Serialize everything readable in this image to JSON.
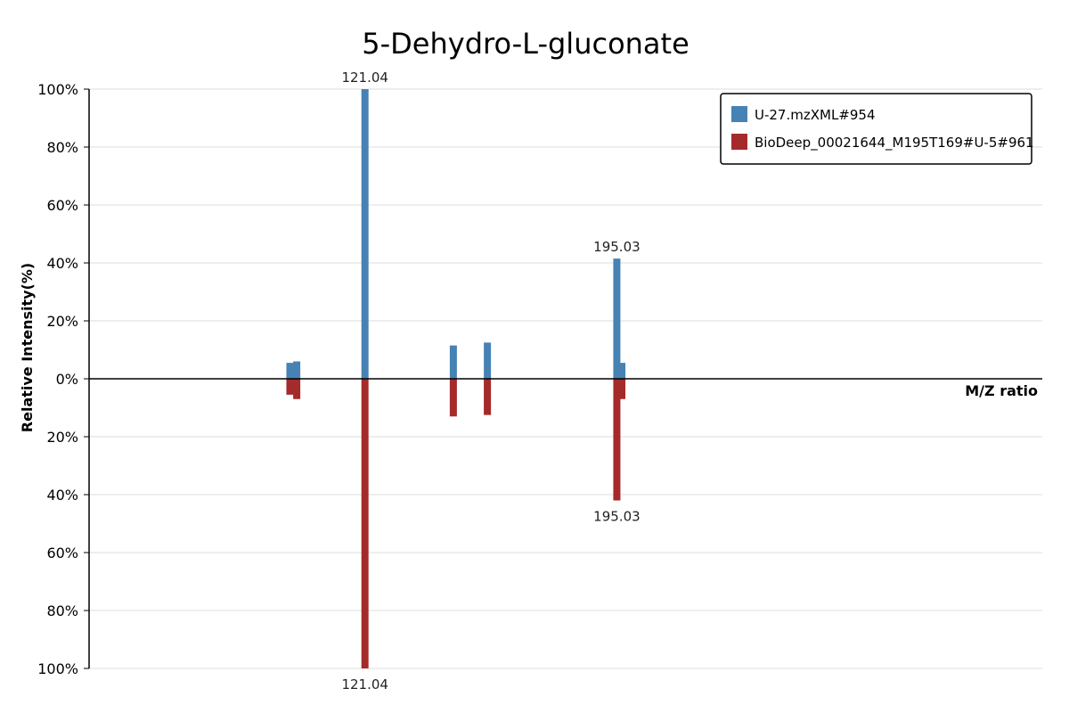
{
  "chart_data": {
    "type": "bar",
    "title": "5-Dehydro-L-gluconate",
    "xlabel": "M/Z ratio",
    "ylabel": "Relative Intensity(%)",
    "ylim": [
      -100,
      100
    ],
    "y_ticks": [
      "100%",
      "80%",
      "60%",
      "40%",
      "20%",
      "0%",
      "20%",
      "40%",
      "60%",
      "80%",
      "100%"
    ],
    "grid": true,
    "legend_position": "top-right",
    "series": [
      {
        "name": "U-27.mzXML#954",
        "color": "#4682b4",
        "direction": "up",
        "peaks": [
          {
            "mz": 99.0,
            "intensity": 5.5
          },
          {
            "mz": 101.0,
            "intensity": 6.0
          },
          {
            "mz": 121.04,
            "intensity": 100,
            "label": "121.04"
          },
          {
            "mz": 147.0,
            "intensity": 11.5
          },
          {
            "mz": 157.0,
            "intensity": 12.5
          },
          {
            "mz": 195.03,
            "intensity": 41.5,
            "label": "195.03"
          },
          {
            "mz": 196.5,
            "intensity": 5.5
          }
        ]
      },
      {
        "name": "BioDeep_00021644_M195T169#U-5#961",
        "color": "#a52a2a",
        "direction": "down",
        "peaks": [
          {
            "mz": 99.0,
            "intensity": 5.5
          },
          {
            "mz": 101.0,
            "intensity": 7.0
          },
          {
            "mz": 121.04,
            "intensity": 100,
            "label": "121.04"
          },
          {
            "mz": 147.0,
            "intensity": 13.0
          },
          {
            "mz": 157.0,
            "intensity": 12.5
          },
          {
            "mz": 195.03,
            "intensity": 42.0,
            "label": "195.03"
          },
          {
            "mz": 196.5,
            "intensity": 7.0
          }
        ]
      }
    ]
  }
}
